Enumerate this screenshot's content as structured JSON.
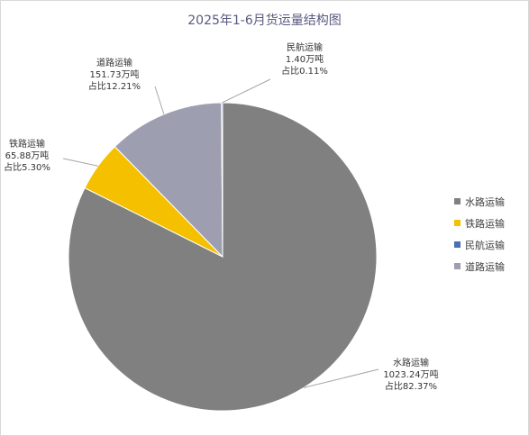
{
  "chart_data": {
    "type": "pie",
    "title": "2025年1-6月货运量结构图",
    "slices": [
      {
        "name": "水路运输",
        "value": 1023.24,
        "value_label": "1023.24万吨",
        "share_label": "占比82.37%",
        "color": "#808080"
      },
      {
        "name": "铁路运输",
        "value": 65.88,
        "value_label": "65.88万吨",
        "share_label": "占比5.30%",
        "color": "#f5c000"
      },
      {
        "name": "民航运输",
        "value": 1.4,
        "value_label": "1.40万吨",
        "share_label": "占比0.11%",
        "color": "#4a6fb5"
      },
      {
        "name": "道路运输",
        "value": 151.73,
        "value_label": "151.73万吨",
        "share_label": "占比12.21%",
        "color": "#9d9eb0"
      }
    ],
    "drawing_order": [
      0,
      1,
      3,
      2
    ],
    "legend_position": "right"
  }
}
